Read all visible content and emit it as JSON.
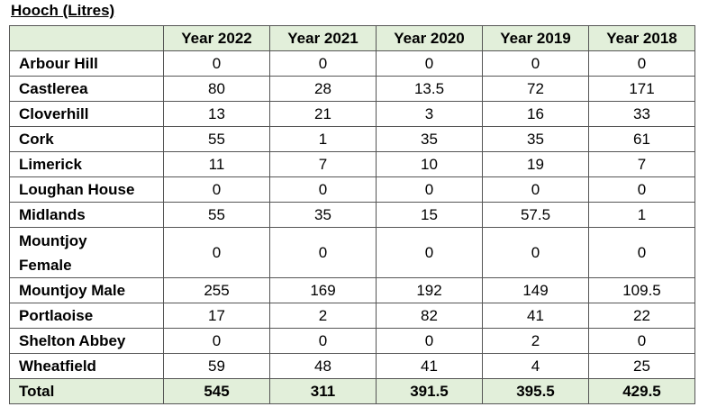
{
  "title": "Hooch (Litres)",
  "columns": [
    "",
    "Year 2022",
    "Year 2021",
    "Year 2020",
    "Year 2019",
    "Year 2018"
  ],
  "rows": [
    {
      "name": "Arbour Hill",
      "values": [
        "0",
        "0",
        "0",
        "0",
        "0"
      ]
    },
    {
      "name": "Castlerea",
      "values": [
        "80",
        "28",
        "13.5",
        "72",
        "171"
      ]
    },
    {
      "name": "Cloverhill",
      "values": [
        "13",
        "21",
        "3",
        "16",
        "33"
      ]
    },
    {
      "name": "Cork",
      "values": [
        "55",
        "1",
        "35",
        "35",
        "61"
      ]
    },
    {
      "name": "Limerick",
      "values": [
        "11",
        "7",
        "10",
        "19",
        "7"
      ]
    },
    {
      "name": "Loughan House",
      "values": [
        "0",
        "0",
        "0",
        "0",
        "0"
      ]
    },
    {
      "name": "Midlands",
      "values": [
        "55",
        "35",
        "15",
        "57.5",
        "1"
      ]
    },
    {
      "name_lines": [
        "Mountjoy",
        "Female"
      ],
      "values": [
        "0",
        "0",
        "0",
        "0",
        "0"
      ]
    },
    {
      "name": "Mountjoy Male",
      "values": [
        "255",
        "169",
        "192",
        "149",
        "109.5"
      ]
    },
    {
      "name": "Portlaoise",
      "values": [
        "17",
        "2",
        "82",
        "41",
        "22"
      ]
    },
    {
      "name": "Shelton Abbey",
      "values": [
        "0",
        "0",
        "0",
        "2",
        "0"
      ]
    },
    {
      "name": "Wheatfield",
      "values": [
        "59",
        "48",
        "41",
        "4",
        "25"
      ]
    }
  ],
  "total": {
    "name": "Total",
    "values": [
      "545",
      "311",
      "391.5",
      "395.5",
      "429.5"
    ]
  },
  "colors": {
    "header_bg": "#e2efda",
    "border": "#555555"
  }
}
